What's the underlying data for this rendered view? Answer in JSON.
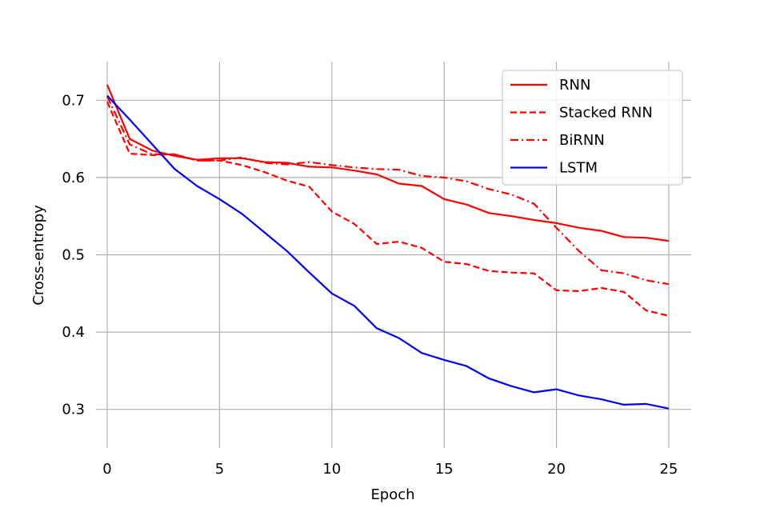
{
  "chart_data": {
    "type": "line",
    "title": "",
    "xlabel": "Epoch",
    "ylabel": "Cross-entropy",
    "xlim": [
      -0.5,
      26.0
    ],
    "ylim": [
      0.25,
      0.75
    ],
    "xticks": [
      0,
      5,
      10,
      15,
      20,
      25
    ],
    "yticks": [
      0.3,
      0.4,
      0.5,
      0.6,
      0.7
    ],
    "grid": true,
    "legend_position": "top-right",
    "x": [
      0,
      1,
      2,
      3,
      4,
      5,
      6,
      7,
      8,
      9,
      10,
      11,
      12,
      13,
      14,
      15,
      16,
      17,
      18,
      19,
      20,
      21,
      22,
      23,
      24,
      25
    ],
    "series": [
      {
        "name": "RNN",
        "color": "#ff0000",
        "style": "solid",
        "values": [
          0.72,
          0.65,
          0.635,
          0.628,
          0.623,
          0.625,
          0.625,
          0.62,
          0.619,
          0.614,
          0.613,
          0.609,
          0.604,
          0.592,
          0.589,
          0.572,
          0.565,
          0.554,
          0.55,
          0.545,
          0.541,
          0.535,
          0.531,
          0.523,
          0.522,
          0.518
        ]
      },
      {
        "name": "Stacked RNN",
        "color": "#ff0000",
        "style": "dashed",
        "values": [
          0.698,
          0.631,
          0.629,
          0.63,
          0.622,
          0.622,
          0.616,
          0.607,
          0.596,
          0.588,
          0.556,
          0.54,
          0.514,
          0.517,
          0.509,
          0.491,
          0.488,
          0.479,
          0.477,
          0.476,
          0.454,
          0.453,
          0.457,
          0.452,
          0.428,
          0.421
        ]
      },
      {
        "name": "BiRNN",
        "color": "#ff0000",
        "style": "dashdot",
        "values": [
          0.705,
          0.643,
          0.63,
          0.63,
          0.622,
          0.622,
          0.626,
          0.619,
          0.617,
          0.62,
          0.616,
          0.613,
          0.611,
          0.61,
          0.602,
          0.6,
          0.595,
          0.585,
          0.578,
          0.566,
          0.535,
          0.505,
          0.48,
          0.476,
          0.467,
          0.462
        ]
      },
      {
        "name": "LSTM",
        "color": "#0000ff",
        "style": "solid",
        "values": [
          0.706,
          0.675,
          0.643,
          0.611,
          0.589,
          0.572,
          0.553,
          0.529,
          0.505,
          0.477,
          0.45,
          0.434,
          0.405,
          0.392,
          0.373,
          0.364,
          0.356,
          0.34,
          0.33,
          0.322,
          0.326,
          0.318,
          0.313,
          0.306,
          0.307,
          0.301
        ]
      }
    ]
  }
}
